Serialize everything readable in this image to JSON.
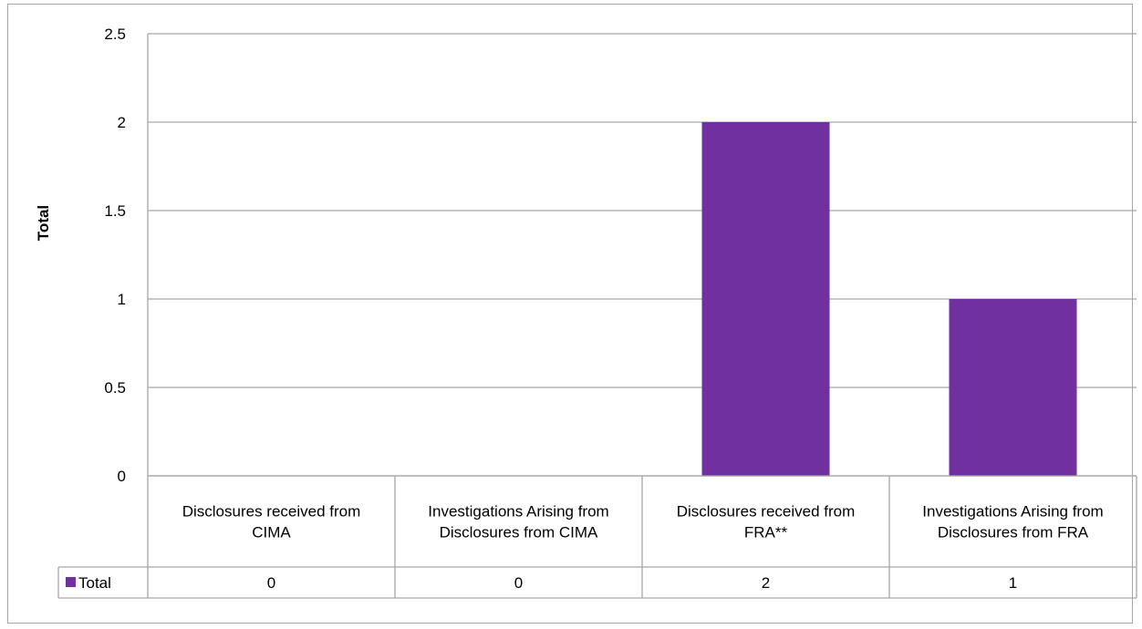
{
  "chart_data": {
    "type": "bar",
    "title": "",
    "xlabel": "",
    "ylabel": "Total",
    "ylim": [
      0,
      2.5
    ],
    "yticks": [
      "0",
      "0.5",
      "1",
      "1.5",
      "2",
      "2.5"
    ],
    "grid": true,
    "legend": "data-table",
    "categories": [
      "Disclosures received from CIMA",
      "Investigations Arising from Disclosures from CIMA",
      "Disclosures received from FRA**",
      "Investigations Arising from Disclosures from FRA"
    ],
    "series": [
      {
        "name": "Total",
        "values": [
          0,
          0,
          2,
          1
        ],
        "labels": [
          "0",
          "0",
          "2",
          "1"
        ],
        "color": "#7030a0"
      }
    ]
  }
}
